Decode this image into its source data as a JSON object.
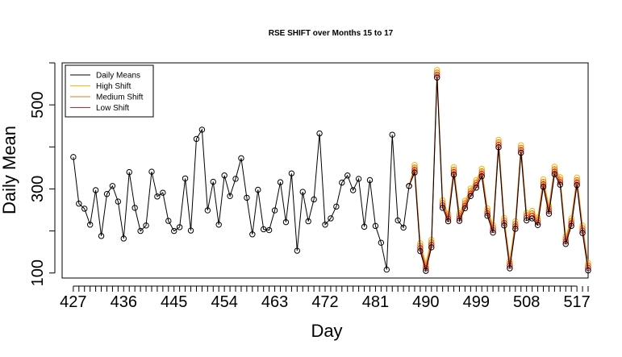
{
  "chart_data": {
    "type": "line",
    "title": "RSE SHIFT over Months 15 to 17",
    "xlabel": "Day",
    "ylabel": "Daily Mean",
    "xlim": [
      425,
      519
    ],
    "ylim": [
      88,
      600
    ],
    "x_ticks": [
      427,
      436,
      445,
      454,
      463,
      472,
      481,
      490,
      499,
      508,
      517
    ],
    "y_ticks": [
      100,
      300,
      500
    ],
    "legend_position": "top-left",
    "legend": [
      {
        "label": "Daily Means",
        "color": "#000000"
      },
      {
        "label": "High Shift",
        "color": "#F5B800"
      },
      {
        "label": "Medium Shift",
        "color": "#E8761A"
      },
      {
        "label": "Low Shift",
        "color": "#E01B1B"
      }
    ],
    "x_start": 427,
    "daily_means": [
      376,
      265,
      253,
      215,
      297,
      188,
      288,
      307,
      270,
      182,
      340,
      255,
      200,
      213,
      341,
      282,
      291,
      224,
      200,
      209,
      325,
      201,
      419,
      441,
      249,
      317,
      215,
      332,
      283,
      324,
      373,
      279,
      192,
      298,
      204,
      202,
      249,
      316,
      221,
      337,
      153,
      293,
      223,
      275,
      432,
      215,
      230,
      258,
      315,
      332,
      297,
      324,
      210,
      321,
      212,
      172,
      108,
      429,
      225,
      208,
      307,
      339,
      152,
      105,
      161,
      565,
      255,
      223,
      334,
      224,
      254,
      283,
      303,
      330,
      236,
      196,
      399,
      213,
      111,
      205,
      386,
      225,
      230,
      214,
      305,
      241,
      335,
      310,
      169,
      212,
      309,
      195,
      106
    ],
    "shift_start_day": 488,
    "shift_series": [
      {
        "name": "High Shift",
        "color": "#F5B800",
        "values": [
          357,
          171,
          123,
          179,
          583,
          273,
          241,
          352,
          242,
          272,
          301,
          321,
          348,
          254,
          214,
          417,
          231,
          129,
          223,
          404,
          243,
          248,
          232,
          323,
          259,
          353,
          328,
          187,
          230,
          327,
          213,
          124
        ]
      },
      {
        "name": "Medium Shift",
        "color": "#E8761A",
        "values": [
          351,
          165,
          117,
          173,
          577,
          267,
          235,
          346,
          236,
          266,
          295,
          315,
          342,
          248,
          208,
          411,
          225,
          123,
          217,
          398,
          237,
          242,
          226,
          317,
          253,
          347,
          322,
          181,
          224,
          321,
          207,
          118
        ]
      },
      {
        "name": "Low Shift",
        "color": "#E01B1B",
        "values": [
          345,
          159,
          111,
          167,
          571,
          261,
          229,
          340,
          230,
          260,
          289,
          309,
          336,
          242,
          202,
          405,
          219,
          117,
          211,
          392,
          231,
          236,
          220,
          311,
          247,
          341,
          316,
          175,
          218,
          315,
          201,
          112
        ]
      }
    ]
  }
}
